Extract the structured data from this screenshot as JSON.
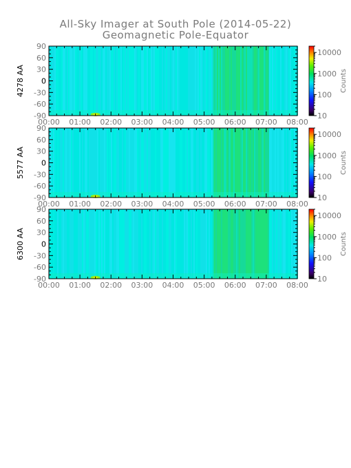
{
  "title": "All-Sky Imager at South Pole (2014-05-22)",
  "subtitle": "Geomagnetic Pole-Equator",
  "colors": {
    "axis": "#000000",
    "tick_label": "#777777",
    "background_cyan": "#00ecec",
    "activity_green": "#20e070"
  },
  "chart_data": [
    {
      "type": "heatmap",
      "panel_label": "4278 AA",
      "x_tick_labels": [
        "00:00",
        "01:00",
        "02:00",
        "03:00",
        "04:00",
        "05:00",
        "06:00",
        "07:00",
        "08:00"
      ],
      "xlim_hours": [
        0,
        8
      ],
      "y_tick_labels": [
        "90",
        "60",
        "30",
        "0",
        "-30",
        "-60",
        "-90"
      ],
      "ylim": [
        -90,
        90
      ],
      "colorbar": {
        "label": "Counts",
        "tick_labels": [
          "10000",
          "1000",
          "100",
          "10"
        ],
        "range": [
          10,
          20000
        ],
        "scale": "log"
      },
      "bright_spot": {
        "time_hours": 1.5,
        "lat": -87
      },
      "active_interval_hours": [
        5.25,
        7.05
      ]
    },
    {
      "type": "heatmap",
      "panel_label": "5577 AA",
      "x_tick_labels": [
        "00:00",
        "01:00",
        "02:00",
        "03:00",
        "04:00",
        "05:00",
        "06:00",
        "07:00",
        "08:00"
      ],
      "xlim_hours": [
        0,
        8
      ],
      "y_tick_labels": [
        "90",
        "60",
        "30",
        "0",
        "-30",
        "-60",
        "-90"
      ],
      "ylim": [
        -90,
        90
      ],
      "colorbar": {
        "label": "Counts",
        "tick_labels": [
          "10000",
          "1000",
          "100",
          "10"
        ],
        "range": [
          10,
          20000
        ],
        "scale": "log"
      },
      "bright_spot": {
        "time_hours": 1.5,
        "lat": -87
      },
      "active_interval_hours": [
        5.25,
        7.05
      ]
    },
    {
      "type": "heatmap",
      "panel_label": "6300 AA",
      "x_tick_labels": [
        "00:00",
        "01:00",
        "02:00",
        "03:00",
        "04:00",
        "05:00",
        "06:00",
        "07:00",
        "08:00"
      ],
      "xlim_hours": [
        0,
        8
      ],
      "y_tick_labels": [
        "90",
        "60",
        "30",
        "0",
        "-30",
        "-60",
        "-90"
      ],
      "ylim": [
        -90,
        90
      ],
      "colorbar": {
        "label": "Counts",
        "tick_labels": [
          "10000",
          "1000",
          "100",
          "10"
        ],
        "range": [
          10,
          20000
        ],
        "scale": "log"
      },
      "bright_spot": {
        "time_hours": 1.5,
        "lat": -87
      },
      "active_interval_hours": [
        5.25,
        7.05
      ]
    }
  ]
}
